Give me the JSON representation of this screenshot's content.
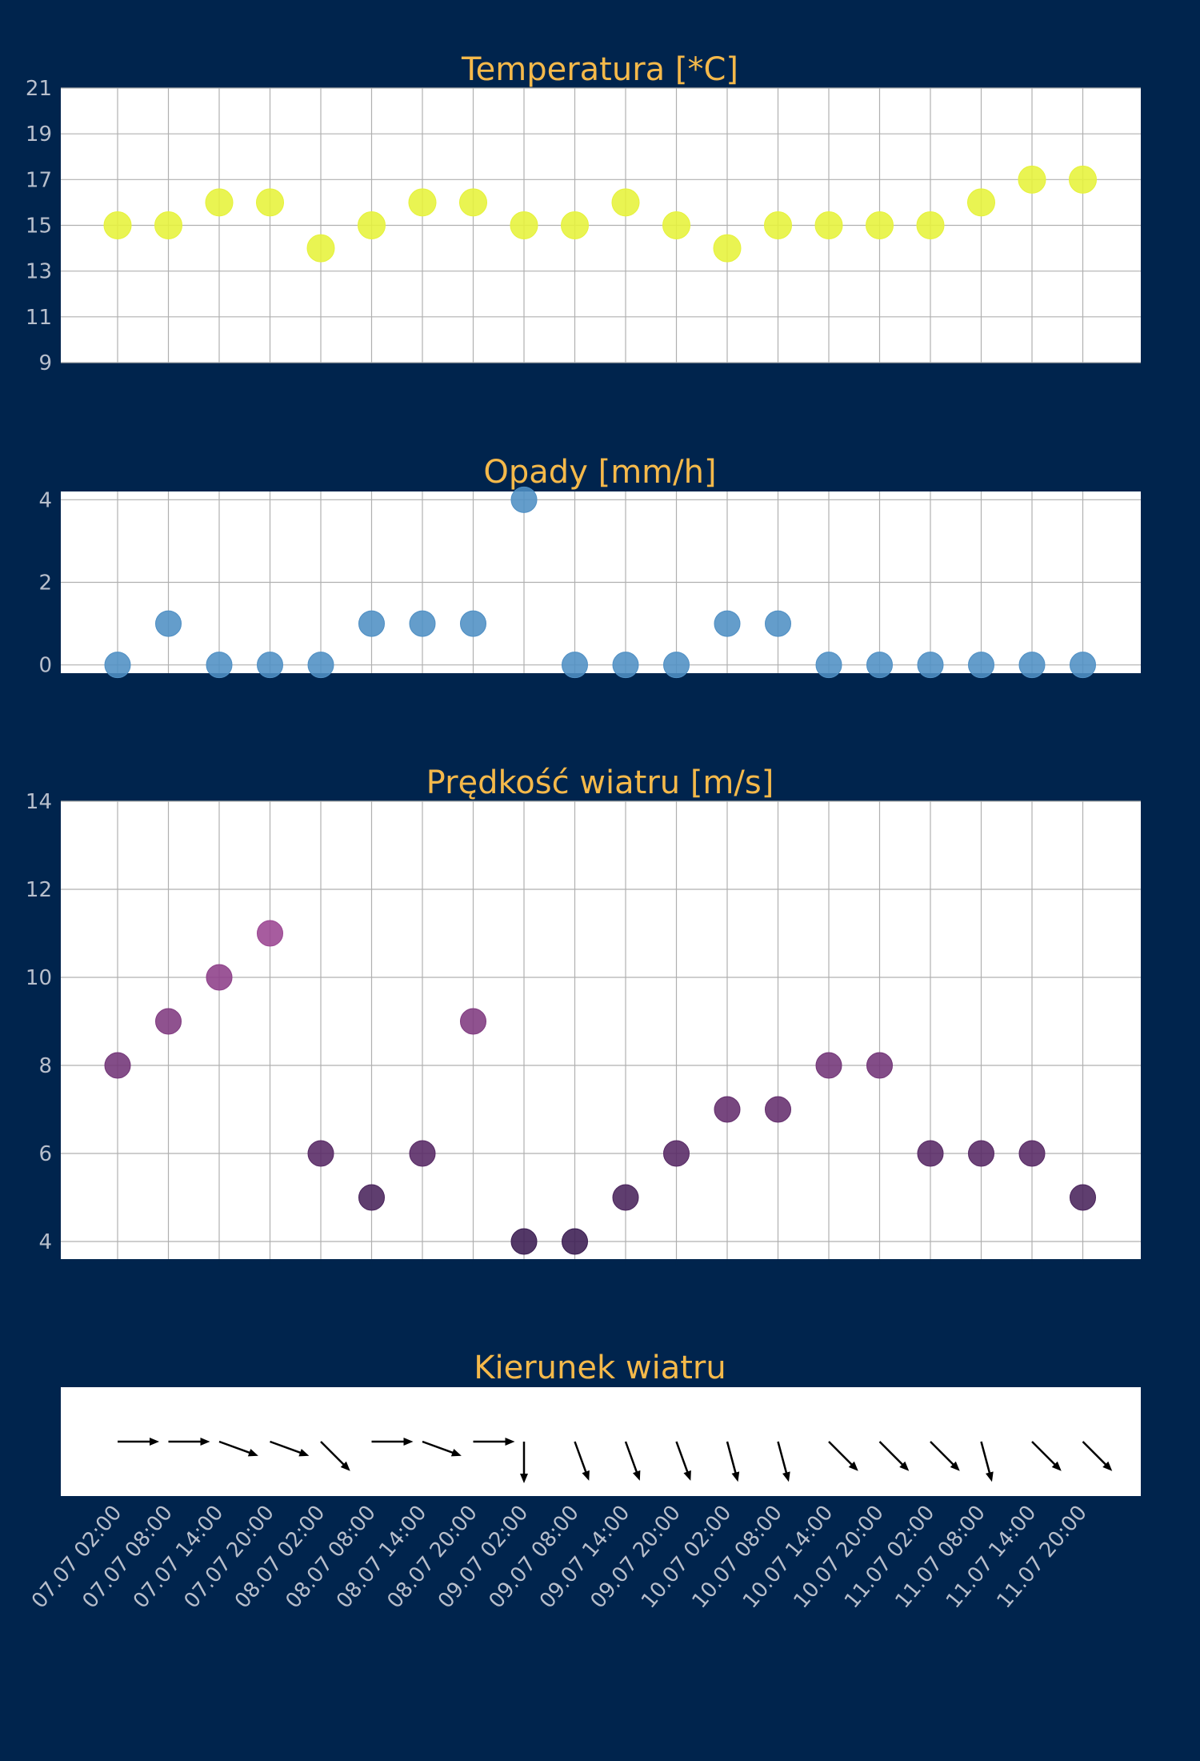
{
  "x_labels": [
    "07.07 02:00",
    "07.07 08:00",
    "07.07 14:00",
    "07.07 20:00",
    "08.07 02:00",
    "08.07 08:00",
    "08.07 14:00",
    "08.07 20:00",
    "09.07 02:00",
    "09.07 08:00",
    "09.07 14:00",
    "09.07 20:00",
    "10.07 02:00",
    "10.07 08:00",
    "10.07 14:00",
    "10.07 20:00",
    "11.07 02:00",
    "11.07 08:00",
    "11.07 14:00",
    "11.07 20:00"
  ],
  "chart_data": [
    {
      "type": "scatter",
      "title": "Temperatura [*C]",
      "ylim": [
        9,
        21
      ],
      "yticks": [
        9,
        11,
        13,
        15,
        17,
        19,
        21
      ],
      "values": [
        15,
        15,
        16,
        16,
        14,
        15,
        16,
        16,
        15,
        15,
        16,
        15,
        14,
        15,
        15,
        15,
        15,
        16,
        17,
        17
      ],
      "color": "#e6f23a",
      "grid": true
    },
    {
      "type": "scatter",
      "title": "Opady [mm/h]",
      "ylim": [
        -0.2,
        4.2
      ],
      "yticks": [
        0,
        2,
        4
      ],
      "values": [
        0,
        1,
        0,
        0,
        0,
        1,
        1,
        1,
        4,
        0,
        0,
        0,
        1,
        1,
        0,
        0,
        0,
        0,
        0,
        0
      ],
      "color": "#4f8fc4",
      "grid": true
    },
    {
      "type": "scatter",
      "title": "Prędkość wiatru [m/s]",
      "ylim": [
        3.6,
        14
      ],
      "yticks": [
        4,
        6,
        8,
        10,
        12,
        14
      ],
      "values": [
        8,
        9,
        10,
        11,
        6,
        5,
        6,
        9,
        4,
        4,
        5,
        6,
        7,
        7,
        8,
        8,
        6,
        6,
        6,
        5
      ],
      "color_scale": [
        "#3b1d52",
        "#9b4592"
      ],
      "grid": true
    },
    {
      "type": "quiver",
      "title": "Kierunek wiatru",
      "direction_deg": [
        270,
        270,
        290,
        290,
        315,
        270,
        290,
        270,
        0,
        340,
        340,
        340,
        345,
        345,
        315,
        315,
        315,
        345,
        315,
        315
      ],
      "arrow_color": "#000000"
    }
  ]
}
